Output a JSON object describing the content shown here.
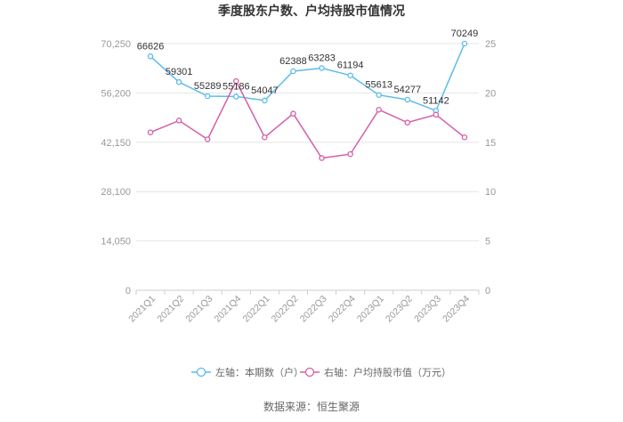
{
  "title": "季度股东户数、户均持股市值情况",
  "source": "数据来源：恒生聚源",
  "chart_data": {
    "type": "line",
    "categories": [
      "2021Q1",
      "2021Q2",
      "2021Q3",
      "2021Q4",
      "2022Q1",
      "2022Q2",
      "2022Q3",
      "2022Q4",
      "2023Q1",
      "2023Q2",
      "2023Q3",
      "2023Q4"
    ],
    "series": [
      {
        "name": "左轴：本期数（户）",
        "axis": "left",
        "color": "#5bbcea",
        "values": [
          66626,
          59301,
          55289,
          55186,
          54047,
          62388,
          63283,
          61194,
          55613,
          54277,
          51142,
          70249
        ],
        "value_labels": [
          "66626",
          "59301",
          "55289",
          "55186",
          "54047",
          "62388",
          "63283",
          "61194",
          "55613",
          "54277",
          "51142",
          "70249"
        ]
      },
      {
        "name": "右轴：户均持股市值（万元）",
        "axis": "right",
        "color": "#d45fa6",
        "values": [
          16.0,
          17.2,
          15.3,
          21.2,
          15.5,
          17.9,
          13.4,
          13.8,
          18.3,
          17.0,
          17.8,
          15.5
        ]
      }
    ],
    "y_left": {
      "lim": [
        0,
        70250
      ],
      "ticks": [
        "0",
        "14,050",
        "28,100",
        "42,150",
        "56,200",
        "70,250"
      ],
      "tick_values": [
        0,
        14050,
        28100,
        42150,
        56200,
        70250
      ]
    },
    "y_right": {
      "lim": [
        0,
        25
      ],
      "ticks": [
        "0",
        "5",
        "10",
        "15",
        "20",
        "25"
      ],
      "tick_values": [
        0,
        5,
        10,
        15,
        20,
        25
      ]
    },
    "grid": true,
    "legend": "bottom"
  }
}
